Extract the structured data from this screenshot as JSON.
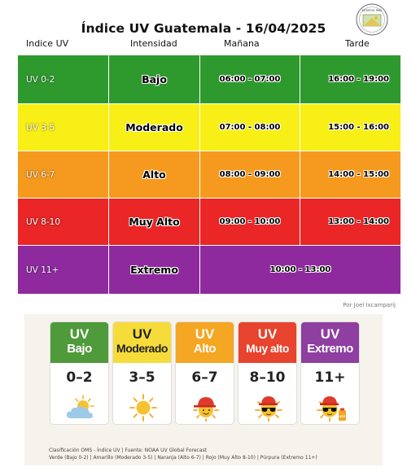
{
  "title": "Índice UV Guatemala - 16/04/2025",
  "logo_text": "ESTATUS PAÍS",
  "headers": {
    "uv_index": "Indice UV",
    "intensity": "Intensidad",
    "morning": "Mañana",
    "afternoon": "Tarde"
  },
  "rows": [
    {
      "range": "UV 0-2",
      "level": "Bajo",
      "morning": "06:00 - 07:00",
      "afternoon": "16:00 - 19:00",
      "color": "#2e9a2e"
    },
    {
      "range": "UV 3-5",
      "level": "Moderado",
      "morning": "07:00 - 08:00",
      "afternoon": "15:00 - 16:00",
      "color": "#f7ef16"
    },
    {
      "range": "UV 6-7",
      "level": "Alto",
      "morning": "08:00 - 09:00",
      "afternoon": "14:00 - 15:00",
      "color": "#f59a1e"
    },
    {
      "range": "UV 8-10",
      "level": "Muy Alto",
      "morning": "09:00 - 10:00",
      "afternoon": "13:00 - 14:00",
      "color": "#ea2626"
    },
    {
      "range": "UV 11+",
      "level": "Extremo",
      "all_day": "10:00 - 13:00",
      "color": "#8e2a9e"
    }
  ],
  "credit": "Por Joel Ixcamparij",
  "cards": [
    {
      "uv": "UV",
      "level": "Bajo",
      "range": "0–2",
      "color": "#4f9a3a",
      "icon": "sun-cloud-icon"
    },
    {
      "uv": "UV",
      "level": "Moderado",
      "range": "3–5",
      "color": "#f5dc3a",
      "icon": "sun-icon"
    },
    {
      "uv": "UV",
      "level": "Alto",
      "range": "6–7",
      "color": "#f5a623",
      "icon": "sun-cap-icon"
    },
    {
      "uv": "UV",
      "level": "Muy alto",
      "range": "8–10",
      "color": "#e8432d",
      "icon": "sun-sunglasses-icon"
    },
    {
      "uv": "UV",
      "level": "Extremo",
      "range": "11+",
      "color": "#8e3fa0",
      "icon": "sun-spf-icon"
    }
  ],
  "spf_label": "SPF",
  "footnote": {
    "line1": "Clasificación OMS - Índice UV | Fuente: NOAA UV Global Forecast",
    "line2": "Verde (Bajo 0-2) | Amarillo (Moderado 3-5) | Naranja (Alto 6-7) | Rojo (Muy Alto 8-10) | Púrpura (Extremo 11+)"
  }
}
